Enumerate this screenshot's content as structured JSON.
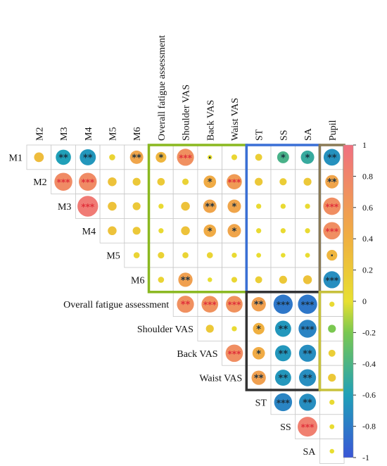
{
  "colors": {
    "cell_border": "#c8c8c8",
    "green_box": "#8ab820",
    "blue_box": "#3a6fd6",
    "brown_box": "#8a7a55",
    "black_box": "#333333",
    "yellow_box": "#c8c23c",
    "scale_low": "#3a56d6",
    "scale_mid": "#e8e030",
    "scale_high": "#f07080"
  },
  "chart_data": {
    "type": "heatmap",
    "subtype": "correlation-circle-matrix",
    "variables": [
      "M1",
      "M2",
      "M3",
      "M4",
      "M5",
      "M6",
      "Overall fatigue assessment",
      "Shoulder VAS",
      "Back VAS",
      "Waist VAS",
      "ST",
      "SS",
      "SA",
      "Pupil"
    ],
    "column_labels": [
      "M2",
      "M3",
      "M4",
      "M5",
      "M6",
      "Overall fatigue assessment",
      "Shoulder VAS",
      "Back VAS",
      "Waist VAS",
      "ST",
      "SS",
      "SA",
      "Pupil"
    ],
    "row_labels": [
      "M1",
      "M2",
      "M3",
      "M4",
      "M5",
      "M6",
      "Overall fatigue assessment",
      "Shoulder VAS",
      "Back VAS",
      "Waist VAS",
      "ST",
      "SS",
      "SA"
    ],
    "colorbar": {
      "range": [
        -1,
        1
      ],
      "ticks": [
        "1",
        "0.8",
        "0.6",
        "0.4",
        "0.2",
        "0",
        "-0.2",
        "-0.4",
        "-0.6",
        "-0.8",
        "-1"
      ]
    },
    "rows": [
      {
        "row": "M1",
        "cells": [
          {
            "col": "M2",
            "r": 0.3,
            "sig": ""
          },
          {
            "col": "M3",
            "r": -0.6,
            "sig": "**"
          },
          {
            "col": "M4",
            "r": -0.65,
            "sig": "**"
          },
          {
            "col": "M5",
            "r": 0.1,
            "sig": ""
          },
          {
            "col": "M6",
            "r": 0.5,
            "sig": "**"
          },
          {
            "col": "Overall fatigue assessment",
            "r": 0.35,
            "sig": "*"
          },
          {
            "col": "Shoulder VAS",
            "r": 0.7,
            "sig": "***"
          },
          {
            "col": "Back VAS",
            "r": 0.02,
            "sig": "·"
          },
          {
            "col": "Waist VAS",
            "r": 0.08,
            "sig": ""
          },
          {
            "col": "ST",
            "r": 0.15,
            "sig": ""
          },
          {
            "col": "SS",
            "r": -0.42,
            "sig": "*"
          },
          {
            "col": "SA",
            "r": -0.5,
            "sig": "*"
          },
          {
            "col": "Pupil",
            "r": -0.68,
            "sig": "**"
          }
        ]
      },
      {
        "row": "M2",
        "cells": [
          {
            "col": "M3",
            "r": 0.75,
            "sig": "***"
          },
          {
            "col": "M4",
            "r": 0.75,
            "sig": "***"
          },
          {
            "col": "M5",
            "r": 0.25,
            "sig": ""
          },
          {
            "col": "M6",
            "r": 0.2,
            "sig": ""
          },
          {
            "col": "Overall fatigue assessment",
            "r": 0.18,
            "sig": ""
          },
          {
            "col": "Shoulder VAS",
            "r": 0.12,
            "sig": ""
          },
          {
            "col": "Back VAS",
            "r": 0.45,
            "sig": "*"
          },
          {
            "col": "Waist VAS",
            "r": 0.6,
            "sig": "***"
          },
          {
            "col": "ST",
            "r": 0.2,
            "sig": ""
          },
          {
            "col": "SS",
            "r": 0.16,
            "sig": ""
          },
          {
            "col": "SA",
            "r": 0.2,
            "sig": ""
          },
          {
            "col": "Pupil",
            "r": 0.5,
            "sig": "**"
          }
        ]
      },
      {
        "row": "M3",
        "cells": [
          {
            "col": "M4",
            "r": 0.9,
            "sig": "***"
          },
          {
            "col": "M5",
            "r": 0.25,
            "sig": ""
          },
          {
            "col": "M6",
            "r": 0.2,
            "sig": ""
          },
          {
            "col": "Overall fatigue assessment",
            "r": 0.05,
            "sig": ""
          },
          {
            "col": "Shoulder VAS",
            "r": 0.25,
            "sig": ""
          },
          {
            "col": "Back VAS",
            "r": 0.5,
            "sig": "**"
          },
          {
            "col": "Waist VAS",
            "r": 0.5,
            "sig": "*"
          },
          {
            "col": "ST",
            "r": 0.05,
            "sig": ""
          },
          {
            "col": "SS",
            "r": 0.05,
            "sig": ""
          },
          {
            "col": "SA",
            "r": 0.05,
            "sig": ""
          },
          {
            "col": "Pupil",
            "r": 0.72,
            "sig": "***"
          }
        ]
      },
      {
        "row": "M4",
        "cells": [
          {
            "col": "M5",
            "r": 0.25,
            "sig": ""
          },
          {
            "col": "M6",
            "r": 0.2,
            "sig": ""
          },
          {
            "col": "Overall fatigue assessment",
            "r": 0.05,
            "sig": ""
          },
          {
            "col": "Shoulder VAS",
            "r": 0.25,
            "sig": ""
          },
          {
            "col": "Back VAS",
            "r": 0.45,
            "sig": "*"
          },
          {
            "col": "Waist VAS",
            "r": 0.5,
            "sig": "*"
          },
          {
            "col": "ST",
            "r": 0.05,
            "sig": ""
          },
          {
            "col": "SS",
            "r": 0.05,
            "sig": ""
          },
          {
            "col": "SA",
            "r": 0.05,
            "sig": ""
          },
          {
            "col": "Pupil",
            "r": 0.72,
            "sig": "***"
          }
        ]
      },
      {
        "row": "M5",
        "cells": [
          {
            "col": "M6",
            "r": 0.1,
            "sig": ""
          },
          {
            "col": "Overall fatigue assessment",
            "r": 0.12,
            "sig": ""
          },
          {
            "col": "Shoulder VAS",
            "r": 0.1,
            "sig": ""
          },
          {
            "col": "Back VAS",
            "r": 0.1,
            "sig": ""
          },
          {
            "col": "Waist VAS",
            "r": 0.05,
            "sig": ""
          },
          {
            "col": "ST",
            "r": 0.03,
            "sig": ""
          },
          {
            "col": "SS",
            "r": 0.02,
            "sig": ""
          },
          {
            "col": "SA",
            "r": 0.03,
            "sig": ""
          },
          {
            "col": "Pupil",
            "r": 0.35,
            "sig": "·"
          }
        ]
      },
      {
        "row": "M6",
        "cells": [
          {
            "col": "Overall fatigue assessment",
            "r": 0.1,
            "sig": ""
          },
          {
            "col": "Shoulder VAS",
            "r": 0.55,
            "sig": "**"
          },
          {
            "col": "Back VAS",
            "r": 0.02,
            "sig": ""
          },
          {
            "col": "Waist VAS",
            "r": 0.08,
            "sig": ""
          },
          {
            "col": "ST",
            "r": 0.15,
            "sig": ""
          },
          {
            "col": "SS",
            "r": 0.2,
            "sig": ""
          },
          {
            "col": "SA",
            "r": 0.25,
            "sig": ""
          },
          {
            "col": "Pupil",
            "r": -0.7,
            "sig": "***"
          }
        ]
      },
      {
        "row": "Overall fatigue assessment",
        "cells": [
          {
            "col": "Shoulder VAS",
            "r": 0.7,
            "sig": "**"
          },
          {
            "col": "Back VAS",
            "r": 0.68,
            "sig": "***"
          },
          {
            "col": "Waist VAS",
            "r": 0.68,
            "sig": "***"
          },
          {
            "col": "ST",
            "r": 0.55,
            "sig": "**"
          },
          {
            "col": "SS",
            "r": -0.82,
            "sig": "***"
          },
          {
            "col": "SA",
            "r": -0.82,
            "sig": "***"
          },
          {
            "col": "Pupil",
            "r": 0.05,
            "sig": ""
          }
        ]
      },
      {
        "row": "Shoulder VAS",
        "cells": [
          {
            "col": "Back VAS",
            "r": 0.2,
            "sig": ""
          },
          {
            "col": "Waist VAS",
            "r": 0.05,
            "sig": ""
          },
          {
            "col": "ST",
            "r": 0.4,
            "sig": "*"
          },
          {
            "col": "SS",
            "r": -0.65,
            "sig": "**"
          },
          {
            "col": "SA",
            "r": -0.75,
            "sig": "***"
          },
          {
            "col": "Pupil",
            "r": -0.2,
            "sig": ""
          }
        ]
      },
      {
        "row": "Back VAS",
        "cells": [
          {
            "col": "Waist VAS",
            "r": 0.72,
            "sig": "***"
          },
          {
            "col": "ST",
            "r": 0.45,
            "sig": "*"
          },
          {
            "col": "SS",
            "r": -0.65,
            "sig": "**"
          },
          {
            "col": "SA",
            "r": -0.7,
            "sig": "**"
          },
          {
            "col": "Pupil",
            "r": 0.15,
            "sig": ""
          }
        ]
      },
      {
        "row": "Waist VAS",
        "cells": [
          {
            "col": "ST",
            "r": 0.55,
            "sig": "**"
          },
          {
            "col": "SS",
            "r": -0.65,
            "sig": "**"
          },
          {
            "col": "SA",
            "r": -0.7,
            "sig": "**"
          },
          {
            "col": "Pupil",
            "r": 0.2,
            "sig": ""
          }
        ]
      },
      {
        "row": "ST",
        "cells": [
          {
            "col": "SS",
            "r": -0.75,
            "sig": "***"
          },
          {
            "col": "SA",
            "r": -0.7,
            "sig": "**"
          },
          {
            "col": "Pupil",
            "r": 0.05,
            "sig": ""
          }
        ]
      },
      {
        "row": "SS",
        "cells": [
          {
            "col": "SA",
            "r": 0.85,
            "sig": "***"
          },
          {
            "col": "Pupil",
            "r": 0.03,
            "sig": ""
          }
        ]
      },
      {
        "row": "SA",
        "cells": [
          {
            "col": "Pupil",
            "r": 0.02,
            "sig": ""
          }
        ]
      }
    ]
  }
}
